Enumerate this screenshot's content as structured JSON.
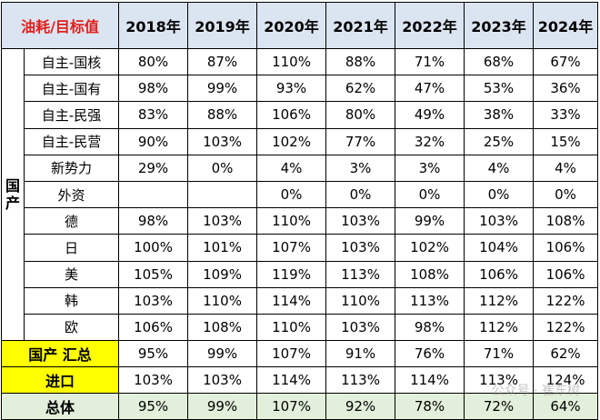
{
  "header": {
    "corner": "油耗/目标值",
    "years": [
      "2018年",
      "2019年",
      "2020年",
      "2021年",
      "2022年",
      "2023年",
      "2024年"
    ]
  },
  "group_label": "国产",
  "rows": [
    {
      "label": "自主-国核",
      "values": [
        "80%",
        "87%",
        "110%",
        "88%",
        "71%",
        "68%",
        "67%"
      ]
    },
    {
      "label": "自主-国有",
      "values": [
        "98%",
        "99%",
        "93%",
        "62%",
        "47%",
        "53%",
        "36%"
      ]
    },
    {
      "label": "自主-民强",
      "values": [
        "83%",
        "88%",
        "106%",
        "80%",
        "49%",
        "38%",
        "33%"
      ]
    },
    {
      "label": "自主-民营",
      "values": [
        "90%",
        "103%",
        "102%",
        "77%",
        "32%",
        "25%",
        "15%"
      ]
    },
    {
      "label": "新势力",
      "values": [
        "29%",
        "0%",
        "4%",
        "3%",
        "3%",
        "4%",
        "4%"
      ]
    },
    {
      "label": "外资",
      "values": [
        "",
        "",
        "0%",
        "0%",
        "0%",
        "0%",
        "0%"
      ]
    },
    {
      "label": "德",
      "values": [
        "98%",
        "103%",
        "110%",
        "103%",
        "99%",
        "103%",
        "108%"
      ]
    },
    {
      "label": "日",
      "values": [
        "100%",
        "101%",
        "107%",
        "103%",
        "102%",
        "104%",
        "106%"
      ]
    },
    {
      "label": "美",
      "values": [
        "105%",
        "109%",
        "119%",
        "113%",
        "108%",
        "106%",
        "106%"
      ]
    },
    {
      "label": "韩",
      "values": [
        "103%",
        "110%",
        "114%",
        "110%",
        "113%",
        "112%",
        "122%"
      ]
    },
    {
      "label": "欧",
      "values": [
        "106%",
        "108%",
        "110%",
        "103%",
        "98%",
        "112%",
        "122%"
      ]
    }
  ],
  "summary": [
    {
      "label": "国产 汇总",
      "values": [
        "95%",
        "99%",
        "107%",
        "91%",
        "76%",
        "71%",
        "62%"
      ]
    },
    {
      "label": "进口",
      "values": [
        "103%",
        "103%",
        "114%",
        "113%",
        "114%",
        "113%",
        "124%"
      ]
    }
  ],
  "total": {
    "label": "总体",
    "values": [
      "95%",
      "99%",
      "107%",
      "92%",
      "78%",
      "72%",
      "64%"
    ]
  },
  "watermark": "公众号 · 崔东树"
}
